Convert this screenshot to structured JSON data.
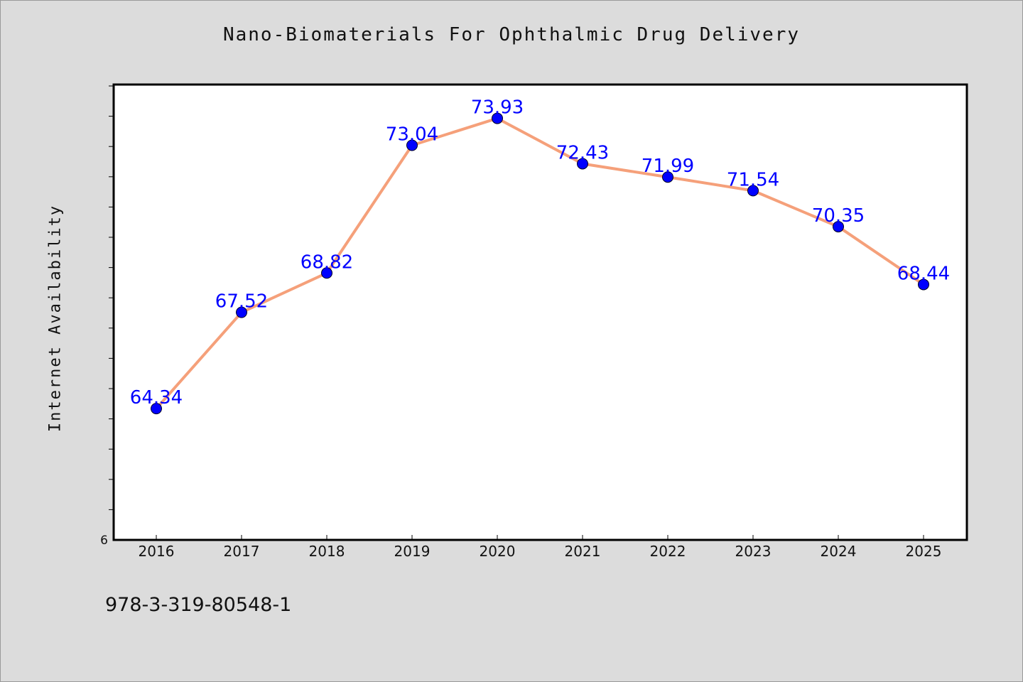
{
  "title": "Nano-Biomaterials For Ophthalmic Drug Delivery",
  "footer_id": "978-3-319-80548-1",
  "colors": {
    "background": "#dcdcdc",
    "plot_background": "#ffffff",
    "line": "#f5a07a",
    "marker": "#0000ff",
    "data_label": "#0000ff"
  },
  "chart_data": {
    "type": "line",
    "title": "Nano-Biomaterials For Ophthalmic Drug Delivery",
    "xlabel": "",
    "ylabel": "Internet Availability",
    "categories": [
      "2016",
      "2017",
      "2018",
      "2019",
      "2020",
      "2021",
      "2022",
      "2023",
      "2024",
      "2025"
    ],
    "series": [
      {
        "values": [
          64.34,
          67.52,
          68.82,
          73.04,
          73.93,
          72.43,
          71.99,
          71.54,
          70.35,
          68.44
        ],
        "labels": [
          "64.34",
          "67.52",
          "68.82",
          "73.04",
          "73.93",
          "72.43",
          "71.99",
          "71.54",
          "70.35",
          "68.44"
        ]
      }
    ],
    "ylim": [
      60,
      75
    ],
    "y_min_label": "6",
    "grid": false,
    "legend": "none"
  }
}
